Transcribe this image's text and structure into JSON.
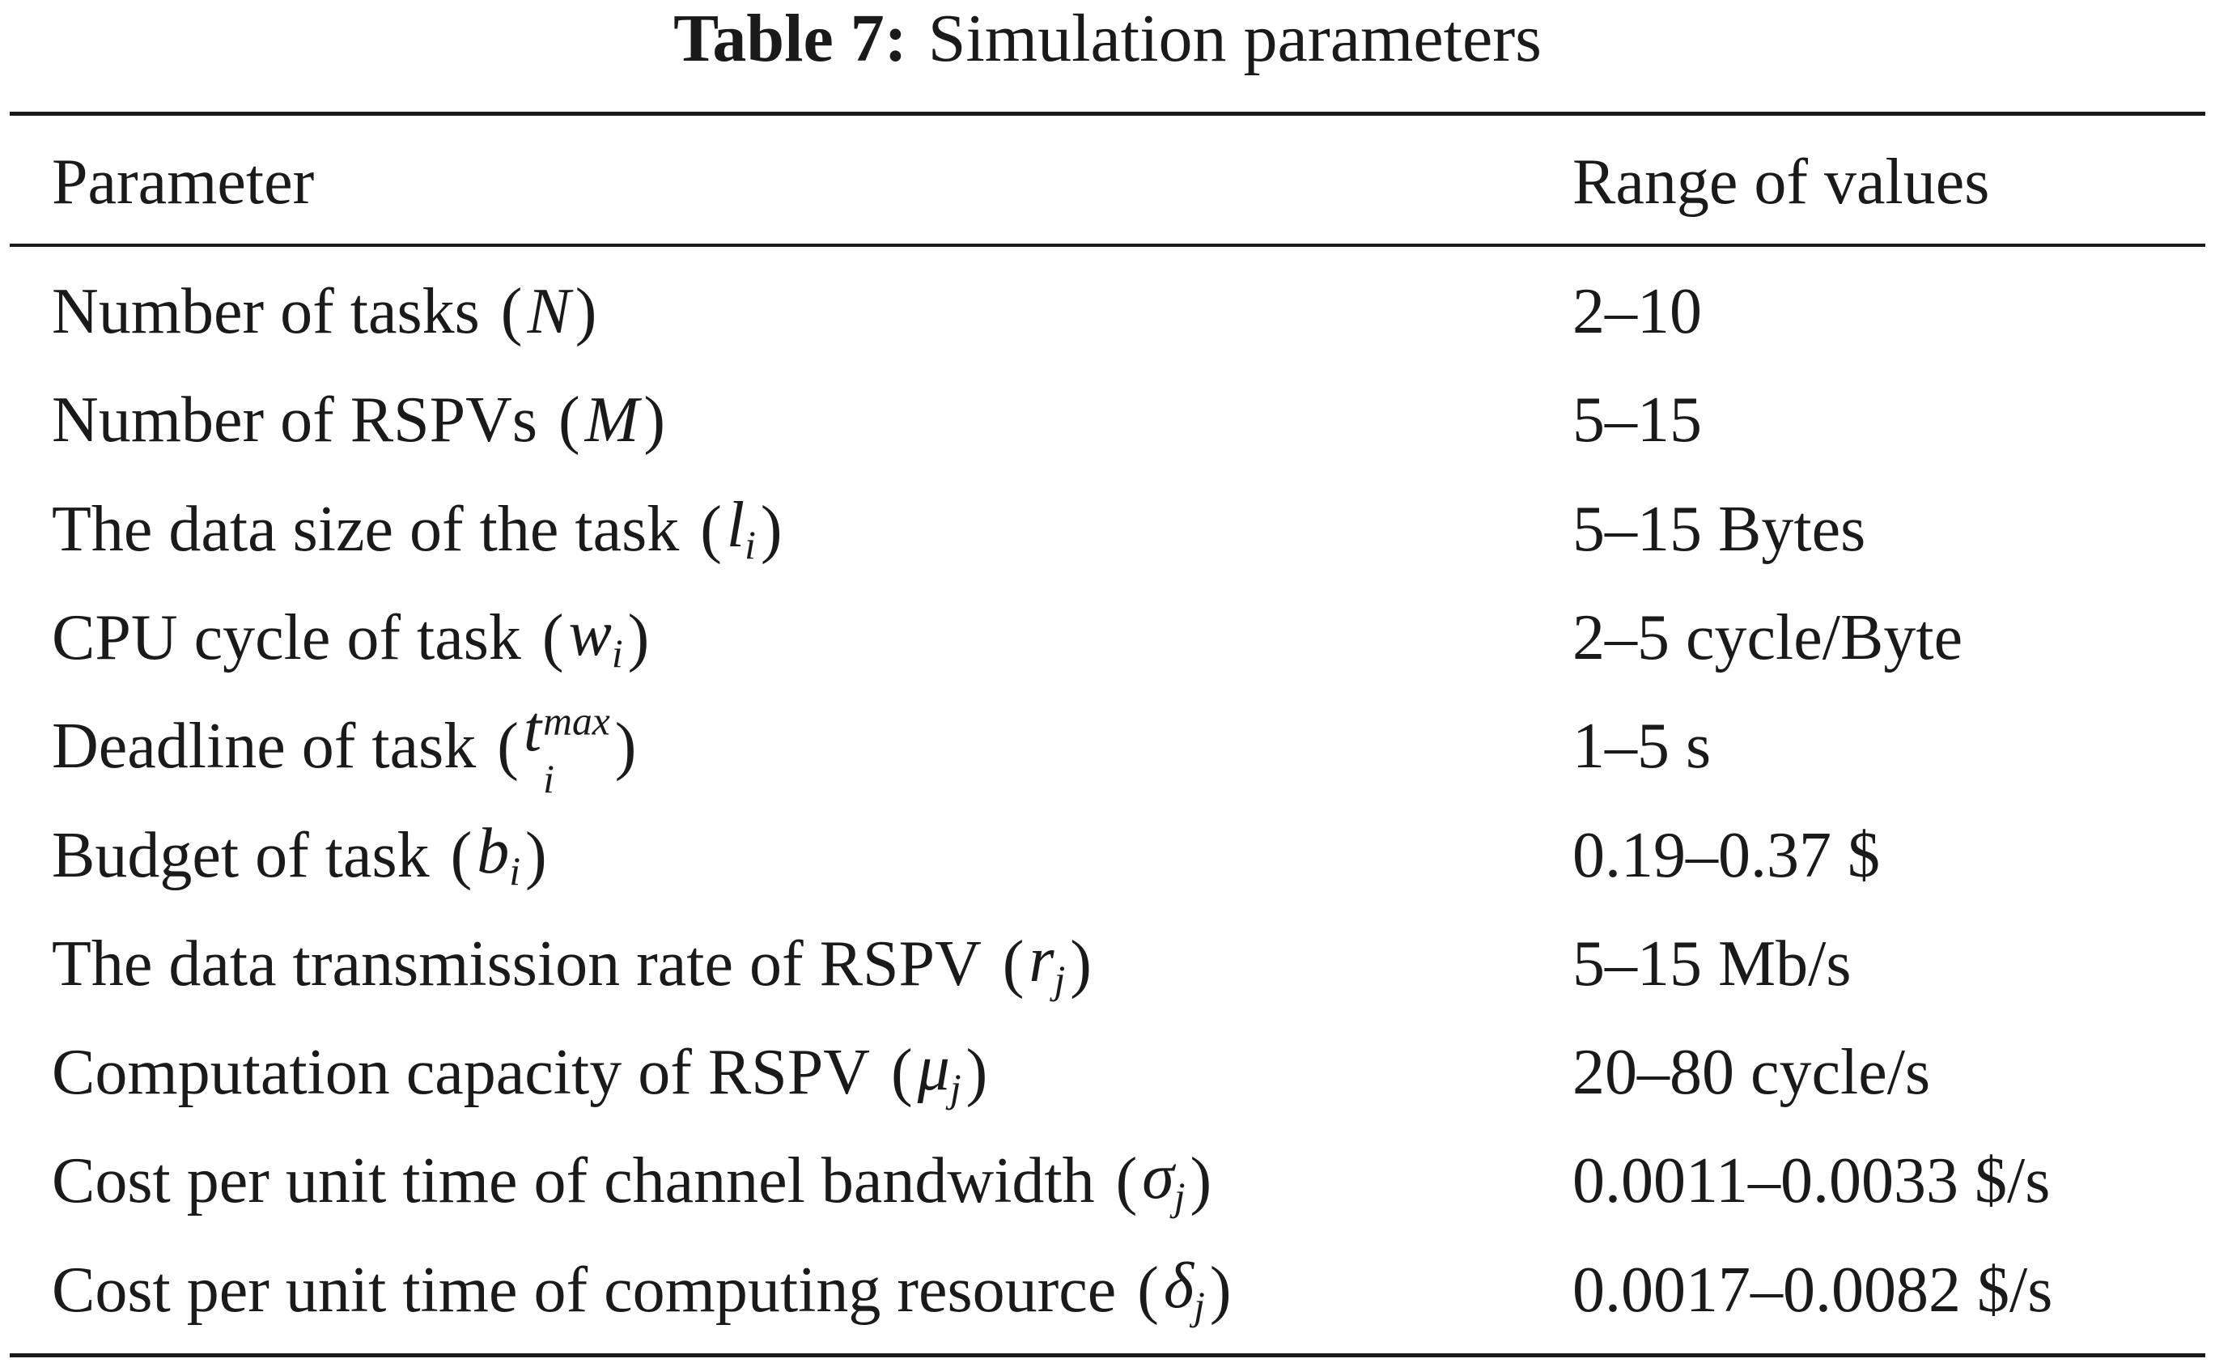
{
  "caption": {
    "label": "Table 7:",
    "title": "Simulation parameters"
  },
  "header": {
    "parameter": "Parameter",
    "range": "Range of values"
  },
  "rows": [
    {
      "parameter": "Number of tasks",
      "symbol": "N",
      "sub": "",
      "sup": "",
      "range": "2–10"
    },
    {
      "parameter": "Number of RSPVs",
      "symbol": "M",
      "sub": "",
      "sup": "",
      "range": "5–15"
    },
    {
      "parameter": "The data size of the task",
      "symbol": "l",
      "sub": "i",
      "sup": "",
      "range": "5–15 Bytes"
    },
    {
      "parameter": "CPU cycle of task",
      "symbol": "w",
      "sub": "i",
      "sup": "",
      "range": "2–5 cycle/Byte"
    },
    {
      "parameter": "Deadline of task",
      "symbol": "t",
      "sub": "i",
      "sup": "max",
      "range": "1–5 s"
    },
    {
      "parameter": "Budget of task",
      "symbol": "b",
      "sub": "i",
      "sup": "",
      "range": "0.19–0.37 $"
    },
    {
      "parameter": "The data transmission rate of RSPV",
      "symbol": "r",
      "sub": "j",
      "sup": "",
      "range": "5–15 Mb/s"
    },
    {
      "parameter": "Computation capacity of RSPV",
      "symbol": "μ",
      "sub": "j",
      "sup": "",
      "range": "20–80 cycle/s"
    },
    {
      "parameter": "Cost per unit time of channel bandwidth",
      "symbol": "σ",
      "sub": "j",
      "sup": "",
      "range": "0.0011–0.0033 $/s"
    },
    {
      "parameter": "Cost per unit time of computing resource",
      "symbol": "δ",
      "sub": "j",
      "sup": "",
      "range": "0.0017–0.0082 $/s"
    }
  ]
}
